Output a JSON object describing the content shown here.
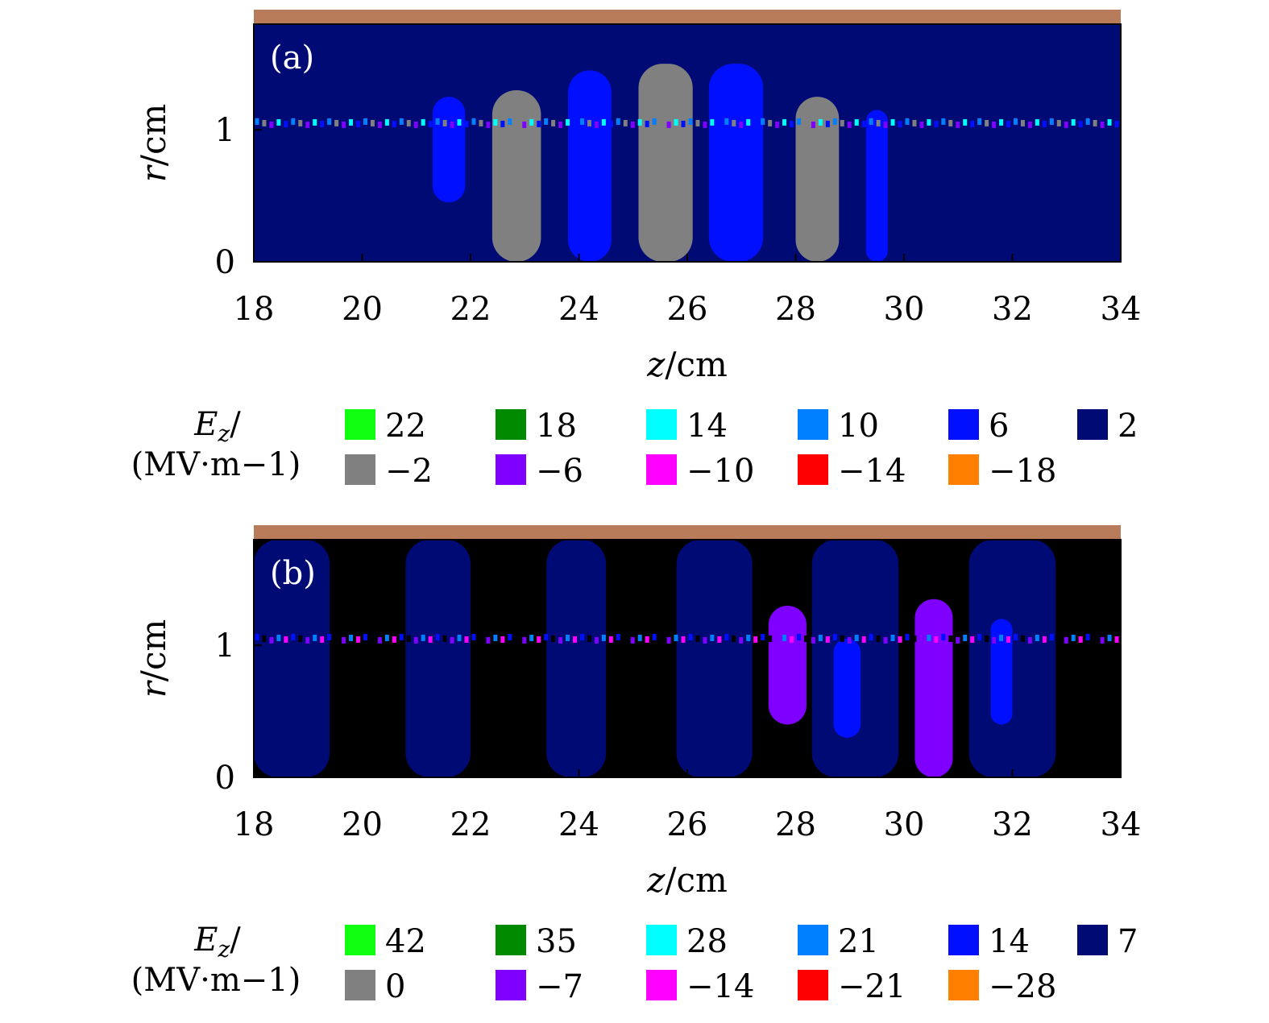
{
  "chart_data": [
    {
      "type": "heatmap",
      "panel_label": "(a)",
      "xlabel": "z/cm",
      "ylabel": "r/cm",
      "xlim": [
        18,
        34
      ],
      "ylim": [
        0,
        1.8
      ],
      "x_ticks": [
        "18",
        "20",
        "22",
        "24",
        "26",
        "28",
        "30",
        "32",
        "34"
      ],
      "y_ticks": [
        "0",
        "1"
      ],
      "legend_title": [
        "Ez/",
        "(MV·m−1)"
      ],
      "legend": [
        {
          "label": "22",
          "color": "#11ff11"
        },
        {
          "label": "18",
          "color": "#008a00"
        },
        {
          "label": "14",
          "color": "#00ffff"
        },
        {
          "label": "10",
          "color": "#0080ff"
        },
        {
          "label": "6",
          "color": "#0010ff"
        },
        {
          "label": "2",
          "color": "#000a75"
        },
        {
          "label": "−2",
          "color": "#808080"
        },
        {
          "label": "−6",
          "color": "#8000ff"
        },
        {
          "label": "−10",
          "color": "#ff00ff"
        },
        {
          "label": "−14",
          "color": "#ff0000"
        },
        {
          "label": "−18",
          "color": "#ff8000"
        }
      ],
      "background": "2",
      "regions": [
        {
          "level": "6",
          "z": [
            21.3,
            21.9
          ],
          "r": [
            0.45,
            1.25
          ]
        },
        {
          "level": "−2",
          "z": [
            22.4,
            23.3
          ],
          "r": [
            0,
            1.3
          ]
        },
        {
          "level": "6",
          "z": [
            23.8,
            24.6
          ],
          "r": [
            0,
            1.45
          ]
        },
        {
          "level": "−2",
          "z": [
            25.1,
            26.1
          ],
          "r": [
            0,
            1.5
          ]
        },
        {
          "level": "6",
          "z": [
            26.4,
            27.4
          ],
          "r": [
            0,
            1.5
          ]
        },
        {
          "level": "−2",
          "z": [
            28.0,
            28.8
          ],
          "r": [
            0,
            1.25
          ]
        },
        {
          "level": "6",
          "z": [
            29.3,
            29.7
          ],
          "r": [
            0,
            1.15
          ]
        }
      ]
    },
    {
      "type": "heatmap",
      "panel_label": "(b)",
      "xlabel": "z/cm",
      "ylabel": "r/cm",
      "xlim": [
        18,
        34
      ],
      "ylim": [
        0,
        1.8
      ],
      "x_ticks": [
        "18",
        "20",
        "22",
        "24",
        "26",
        "28",
        "30",
        "32",
        "34"
      ],
      "y_ticks": [
        "0",
        "1"
      ],
      "legend_title": [
        "Ez/",
        "(MV·m−1)"
      ],
      "legend": [
        {
          "label": "42",
          "color": "#11ff11"
        },
        {
          "label": "35",
          "color": "#008a00"
        },
        {
          "label": "28",
          "color": "#00ffff"
        },
        {
          "label": "21",
          "color": "#0080ff"
        },
        {
          "label": "14",
          "color": "#0010ff"
        },
        {
          "label": "7",
          "color": "#000a75"
        },
        {
          "label": "0",
          "color": "#808080"
        },
        {
          "label": "−7",
          "color": "#8000ff"
        },
        {
          "label": "−14",
          "color": "#ff00ff"
        },
        {
          "label": "−21",
          "color": "#ff0000"
        },
        {
          "label": "−28",
          "color": "#ff8000"
        }
      ],
      "background": "black",
      "regions": [
        {
          "level": "7",
          "z": [
            18.0,
            19.4
          ],
          "r": [
            0,
            1.8
          ]
        },
        {
          "level": "7",
          "z": [
            20.8,
            22.0
          ],
          "r": [
            0,
            1.8
          ]
        },
        {
          "level": "7",
          "z": [
            23.4,
            24.5
          ],
          "r": [
            0,
            1.8
          ]
        },
        {
          "level": "7",
          "z": [
            25.8,
            27.2
          ],
          "r": [
            0,
            1.8
          ]
        },
        {
          "level": "−7",
          "z": [
            27.5,
            28.2
          ],
          "r": [
            0.4,
            1.3
          ]
        },
        {
          "level": "7",
          "z": [
            28.3,
            29.9
          ],
          "r": [
            0,
            1.8
          ]
        },
        {
          "level": "14",
          "z": [
            28.7,
            29.2
          ],
          "r": [
            0.3,
            1.05
          ]
        },
        {
          "level": "−7",
          "z": [
            30.2,
            30.9
          ],
          "r": [
            0,
            1.35
          ]
        },
        {
          "level": "7",
          "z": [
            31.2,
            32.8
          ],
          "r": [
            0,
            1.8
          ]
        },
        {
          "level": "14",
          "z": [
            31.6,
            32.0
          ],
          "r": [
            0.4,
            1.2
          ]
        }
      ]
    }
  ],
  "colors": {
    "electrode": "#b87c5a",
    "panel_b_background": "#000000"
  }
}
